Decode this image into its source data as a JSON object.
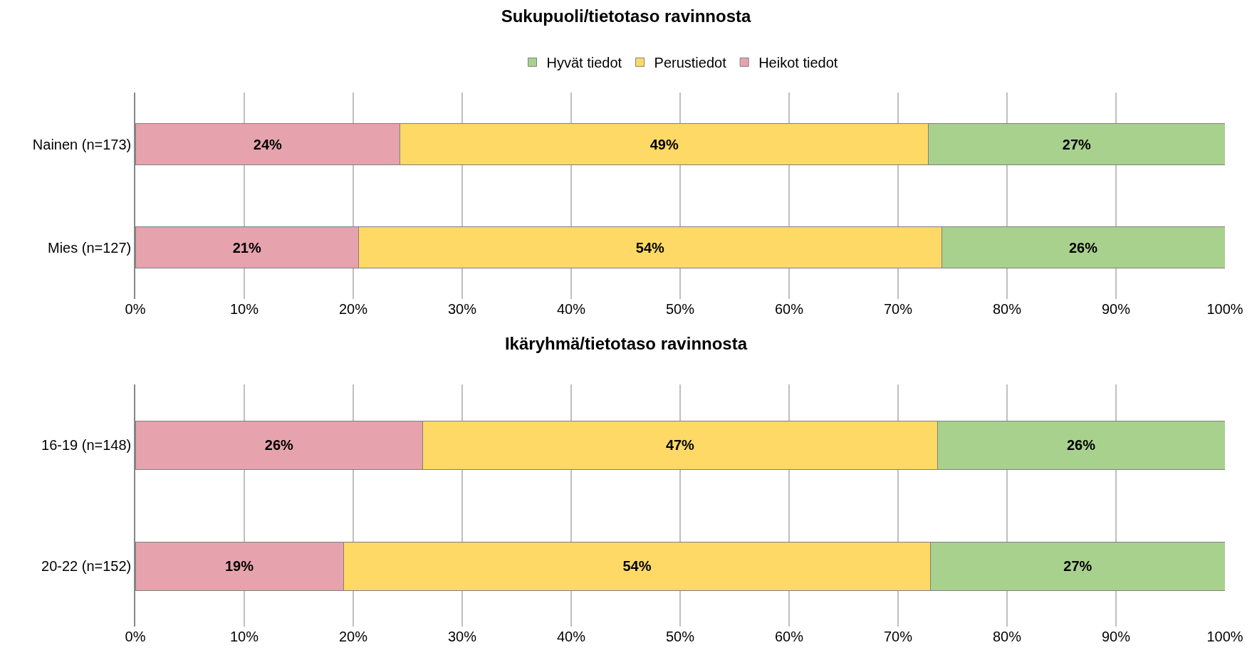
{
  "chart_data": [
    {
      "type": "bar",
      "orientation": "horizontal",
      "stacked": true,
      "title": "Sukupuoli/tietotaso ravinnosta",
      "categories": [
        "Nainen (n=173)",
        "Mies (n=127)"
      ],
      "series": [
        {
          "name": "Heikot tiedot",
          "color": "#e6a3ad",
          "values": [
            24.3,
            20.5
          ],
          "value_labels": [
            "24%",
            "21%"
          ]
        },
        {
          "name": "Perustiedot",
          "color": "#ffd966",
          "values": [
            48.5,
            53.5
          ],
          "value_labels": [
            "49%",
            "54%"
          ]
        },
        {
          "name": "Hyvät tiedot",
          "color": "#a9d18e",
          "values": [
            27.2,
            26.0
          ],
          "value_labels": [
            "27%",
            "26%"
          ]
        }
      ],
      "xlim": [
        0,
        100
      ],
      "xticks": [
        {
          "value": 0,
          "label": "0%"
        },
        {
          "value": 10,
          "label": "10%"
        },
        {
          "value": 20,
          "label": "20%"
        },
        {
          "value": 30,
          "label": "30%"
        },
        {
          "value": 40,
          "label": "40%"
        },
        {
          "value": 50,
          "label": "50%"
        },
        {
          "value": 60,
          "label": "60%"
        },
        {
          "value": 70,
          "label": "70%"
        },
        {
          "value": 80,
          "label": "80%"
        },
        {
          "value": 90,
          "label": "90%"
        },
        {
          "value": 100,
          "label": "100%"
        }
      ],
      "grid": "x",
      "legend": "top"
    },
    {
      "type": "bar",
      "orientation": "horizontal",
      "stacked": true,
      "title": "Ikäryhmä/tietotaso ravinnosta",
      "categories": [
        "16-19 (n=148)",
        "20-22 (n=152)"
      ],
      "series": [
        {
          "color": "#e6a3ad",
          "values": [
            26.4,
            19.1
          ],
          "value_labels": [
            "26%",
            "19%"
          ]
        },
        {
          "color": "#ffd966",
          "values": [
            47.2,
            53.9
          ],
          "value_labels": [
            "47%",
            "54%"
          ]
        },
        {
          "color": "#a9d18e",
          "values": [
            26.4,
            27.0
          ],
          "value_labels": [
            "26%",
            "27%"
          ]
        }
      ],
      "xlim": [
        0,
        100
      ],
      "xticks": [
        {
          "value": 0,
          "label": "0%"
        },
        {
          "value": 10,
          "label": "10%"
        },
        {
          "value": 20,
          "label": "20%"
        },
        {
          "value": 30,
          "label": "30%"
        },
        {
          "value": 40,
          "label": "40%"
        },
        {
          "value": 50,
          "label": "50%"
        },
        {
          "value": 60,
          "label": "60%"
        },
        {
          "value": 70,
          "label": "70%"
        },
        {
          "value": 80,
          "label": "80%"
        },
        {
          "value": 90,
          "label": "90%"
        },
        {
          "value": 100,
          "label": "100%"
        }
      ],
      "grid": "x",
      "legend": false
    }
  ]
}
